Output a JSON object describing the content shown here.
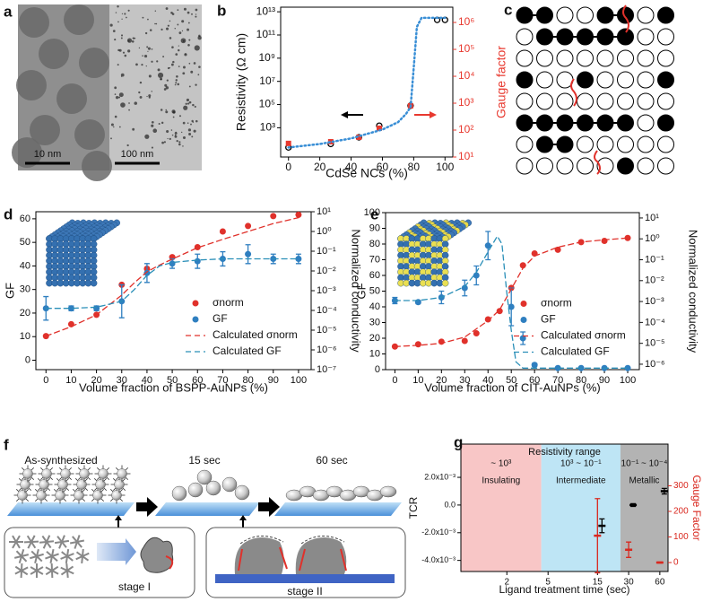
{
  "panels": {
    "a": {
      "label": "a",
      "scalebars": [
        "10 nm",
        "100 nm"
      ]
    },
    "c": {
      "label": "c"
    },
    "f": {
      "label": "f",
      "stages": [
        "As-synthesized",
        "15 sec",
        "60 sec"
      ],
      "insets": [
        "stage I",
        "stage II"
      ]
    }
  },
  "chart_data": [
    {
      "type": "scatter",
      "panel": "b",
      "xlabel": "CdSe NCs (%)",
      "ylabel": "Resistivity (Ω cm)",
      "y2label": "Gauge factor",
      "y2color": "#e8392f",
      "xlim": [
        -5,
        105
      ],
      "xticks": [
        0,
        20,
        40,
        60,
        80,
        100
      ],
      "ylog": true,
      "ylim": [
        3,
        25000000000000
      ],
      "yticks": [
        {
          "value": 1000,
          "label": "10³"
        },
        {
          "value": 100000,
          "label": "10⁵"
        },
        {
          "value": 10000000,
          "label": "10⁷"
        },
        {
          "value": 1000000000,
          "label": "10⁹"
        },
        {
          "value": 100000000000,
          "label": "10¹¹"
        },
        {
          "value": 10000000000000,
          "label": "10¹³"
        }
      ],
      "y2log": true,
      "y2lim": [
        10,
        3700000
      ],
      "y2ticks": [
        {
          "value": 10,
          "label": "10¹"
        },
        {
          "value": 100,
          "label": "10²"
        },
        {
          "value": 1000,
          "label": "10³"
        },
        {
          "value": 10000,
          "label": "10⁴"
        },
        {
          "value": 100000,
          "label": "10⁵"
        },
        {
          "value": 1000000,
          "label": "10⁶"
        }
      ],
      "series": [
        {
          "marker": "open-circle",
          "color": "#000000",
          "x": [
            0,
            27,
            45,
            58,
            78,
            95,
            100
          ],
          "values": [
            20,
            40,
            150,
            1500,
            80000,
            2000000000000,
            2000000000000
          ]
        },
        {
          "axis": "y2",
          "marker": "square",
          "color": "#e8392f",
          "x": [
            0,
            27,
            45,
            58,
            78
          ],
          "values": [
            32,
            37,
            54,
            117,
            800
          ]
        },
        {
          "style": "dotted",
          "color": "#3a8fd6",
          "x": [
            0,
            20,
            40,
            60,
            70,
            75,
            78,
            80,
            82,
            85,
            90,
            100
          ],
          "values": [
            20,
            40,
            120,
            700,
            3000,
            15000,
            60000,
            150000000,
            500000000000,
            3000000000000,
            3000000000000,
            3000000000000
          ]
        }
      ]
    },
    {
      "type": "scatter",
      "panel": "d",
      "xlabel": "Volume fraction of BSPP-AuNPs (%)",
      "ylabel": "GF",
      "y2label": "Normalized conductivity",
      "xlim": [
        -4,
        105
      ],
      "xticks": [
        0,
        10,
        20,
        30,
        40,
        50,
        60,
        70,
        80,
        90,
        100
      ],
      "ylim": [
        -4,
        63
      ],
      "yticks": [
        0,
        10,
        20,
        30,
        40,
        50,
        60
      ],
      "y2log": true,
      "y2lim": [
        1e-07,
        10
      ],
      "y2ticks": [
        {
          "value": 1e-07,
          "label": "10⁻⁷"
        },
        {
          "value": 1e-06,
          "label": "10⁻⁶"
        },
        {
          "value": 1e-05,
          "label": "10⁻⁵"
        },
        {
          "value": 0.0001,
          "label": "10⁻⁴"
        },
        {
          "value": 0.001,
          "label": "10⁻³"
        },
        {
          "value": 0.01,
          "label": "10⁻²"
        },
        {
          "value": 0.1,
          "label": "10⁻¹"
        },
        {
          "value": 1,
          "label": "10⁰"
        },
        {
          "value": 10,
          "label": "10¹"
        }
      ],
      "legend": "center right",
      "series": [
        {
          "name": "σnorm",
          "axis": "y2",
          "marker": "circle",
          "color": "#e0312b",
          "x": [
            0,
            10,
            20,
            30,
            40,
            50,
            60,
            70,
            80,
            90,
            100
          ],
          "values": [
            5e-06,
            2e-05,
            6e-05,
            0.002,
            0.013,
            0.05,
            0.16,
            1,
            1.9,
            6,
            7
          ]
        },
        {
          "name": "GF",
          "marker": "circle",
          "color": "#2f7fc0",
          "x": [
            0,
            10,
            20,
            30,
            40,
            50,
            60,
            70,
            80,
            90,
            100
          ],
          "values": [
            22,
            22,
            22,
            25,
            37,
            41,
            42,
            43,
            45,
            43,
            43
          ],
          "errors": [
            5,
            1,
            1,
            7,
            4,
            2,
            3,
            3,
            4,
            2,
            2
          ]
        },
        {
          "name": "Calculated σnorm",
          "axis": "y2",
          "style": "dashed",
          "color": "#e0312b",
          "x": [
            0,
            10,
            20,
            30,
            35,
            40,
            45,
            50,
            60,
            70,
            80,
            90,
            100
          ],
          "values": [
            5e-06,
            1.5e-05,
            6e-05,
            0.0006,
            0.0025,
            0.009,
            0.02,
            0.04,
            0.15,
            0.4,
            1,
            2.5,
            5
          ]
        },
        {
          "name": "Calculated GF",
          "style": "dashed",
          "color": "#2a8fb8",
          "x": [
            0,
            10,
            20,
            30,
            35,
            40,
            45,
            50,
            60,
            70,
            80,
            90,
            100
          ],
          "values": [
            22,
            22,
            22.5,
            25,
            30,
            36,
            40,
            41.5,
            42.5,
            43,
            43,
            43,
            43
          ]
        }
      ]
    },
    {
      "type": "scatter",
      "panel": "e",
      "xlabel": "Volume fraction of CIT-AuNPs (%)",
      "ylabel": "GF",
      "y2label": "Normalized conductivity",
      "xlim": [
        -4,
        105
      ],
      "xticks": [
        0,
        10,
        20,
        30,
        40,
        50,
        60,
        70,
        80,
        90,
        100
      ],
      "ylim": [
        0,
        100
      ],
      "yticks": [
        0,
        10,
        20,
        30,
        40,
        50,
        60,
        70,
        80,
        90,
        100
      ],
      "y2log": true,
      "y2lim": [
        5.5e-07,
        18
      ],
      "y2ticks": [
        {
          "value": 1e-06,
          "label": "10⁻⁶"
        },
        {
          "value": 1e-05,
          "label": "10⁻⁵"
        },
        {
          "value": 0.0001,
          "label": "10⁻⁴"
        },
        {
          "value": 0.001,
          "label": "10⁻³"
        },
        {
          "value": 0.01,
          "label": "10⁻²"
        },
        {
          "value": 0.1,
          "label": "10⁻¹"
        },
        {
          "value": 1,
          "label": "10⁰"
        },
        {
          "value": 10,
          "label": "10¹"
        }
      ],
      "legend": "center right",
      "series": [
        {
          "name": "σnorm",
          "axis": "y2",
          "marker": "circle",
          "color": "#e0312b",
          "x": [
            0,
            10,
            20,
            30,
            35,
            40,
            45,
            50,
            55,
            60,
            70,
            80,
            90,
            100
          ],
          "values": [
            7e-06,
            9e-06,
            1.2e-05,
            1.3e-05,
            3e-05,
            0.00014,
            0.00035,
            0.0045,
            0.054,
            0.2,
            0.3,
            0.7,
            0.8,
            1.1
          ]
        },
        {
          "name": "GF",
          "marker": "circle",
          "color": "#2f7fc0",
          "x": [
            0,
            10,
            20,
            30,
            35,
            40,
            50,
            55,
            60,
            70,
            80,
            90,
            100
          ],
          "values": [
            44,
            43,
            46,
            52,
            60,
            79,
            40,
            20,
            3,
            1,
            1,
            1,
            1
          ],
          "errors": [
            2,
            1,
            4,
            5,
            6,
            9,
            12,
            4,
            1,
            0.5,
            0.5,
            0.5,
            0.5
          ]
        },
        {
          "name": "Calculated σnorm",
          "axis": "y2",
          "style": "dashed",
          "color": "#e0312b",
          "x": [
            0,
            10,
            20,
            30,
            40,
            45,
            50,
            55,
            60,
            70,
            80,
            90,
            100
          ],
          "values": [
            7e-06,
            8e-06,
            1e-05,
            2e-05,
            0.00012,
            0.0004,
            0.004,
            0.04,
            0.15,
            0.4,
            0.7,
            0.9,
            1.1
          ]
        },
        {
          "name": "Calculated GF",
          "style": "dashed",
          "color": "#2a8fb8",
          "x": [
            0,
            10,
            20,
            30,
            35,
            40,
            44,
            46,
            48,
            50,
            52,
            55,
            60,
            100
          ],
          "values": [
            44,
            44,
            46,
            53,
            62,
            75,
            85,
            80,
            50,
            25,
            5,
            1,
            1,
            1
          ]
        }
      ]
    },
    {
      "type": "scatter",
      "panel": "g",
      "xlabel": "Ligand treatment time (sec)",
      "ylabel": "TCR",
      "y2label": "Gauge Factor",
      "y2color": "#d9281f",
      "header": "Resistivity range",
      "regions": [
        {
          "label": "Insulating",
          "range": "~ 10³",
          "span": [
            0.72,
            4.3
          ],
          "color": "#f6b3b3"
        },
        {
          "label": "Intermediate",
          "range": "10³ ~ 10⁻¹",
          "span": [
            4.3,
            25
          ],
          "color": "#a8dcf2"
        },
        {
          "label": "Metallic",
          "range": "10⁻¹ ~ 10⁻⁴",
          "span": [
            25,
            72
          ],
          "color": "#9a9a9a"
        }
      ],
      "xlog": true,
      "xlim": [
        0.72,
        72
      ],
      "xticks": [
        2,
        5,
        15,
        30,
        60
      ],
      "ylim": [
        -0.0048,
        0.0044
      ],
      "yticks": [
        {
          "value": 0.002,
          "label": "2.0x10⁻³"
        },
        {
          "value": 0,
          "label": "0.0"
        },
        {
          "value": -0.002,
          "label": "-2.0x10⁻³"
        },
        {
          "value": -0.004,
          "label": "-4.0x10⁻³"
        }
      ],
      "y2lim": [
        -35,
        463
      ],
      "y2ticks": [
        0,
        100,
        200,
        300
      ],
      "series": [
        {
          "marker": "dash",
          "color": "#000000",
          "x": [
            15,
            30,
            60
          ],
          "values": [
            -0.0015,
            0,
            0.001
          ],
          "errors": [
            0.0005,
            0.0001,
            0.0002
          ]
        },
        {
          "axis": "y2",
          "marker": "dash",
          "color": "#d9281f",
          "x": [
            15,
            30,
            60
          ],
          "values": [
            105,
            50,
            0
          ],
          "errors": [
            145,
            30,
            2
          ]
        }
      ]
    }
  ]
}
